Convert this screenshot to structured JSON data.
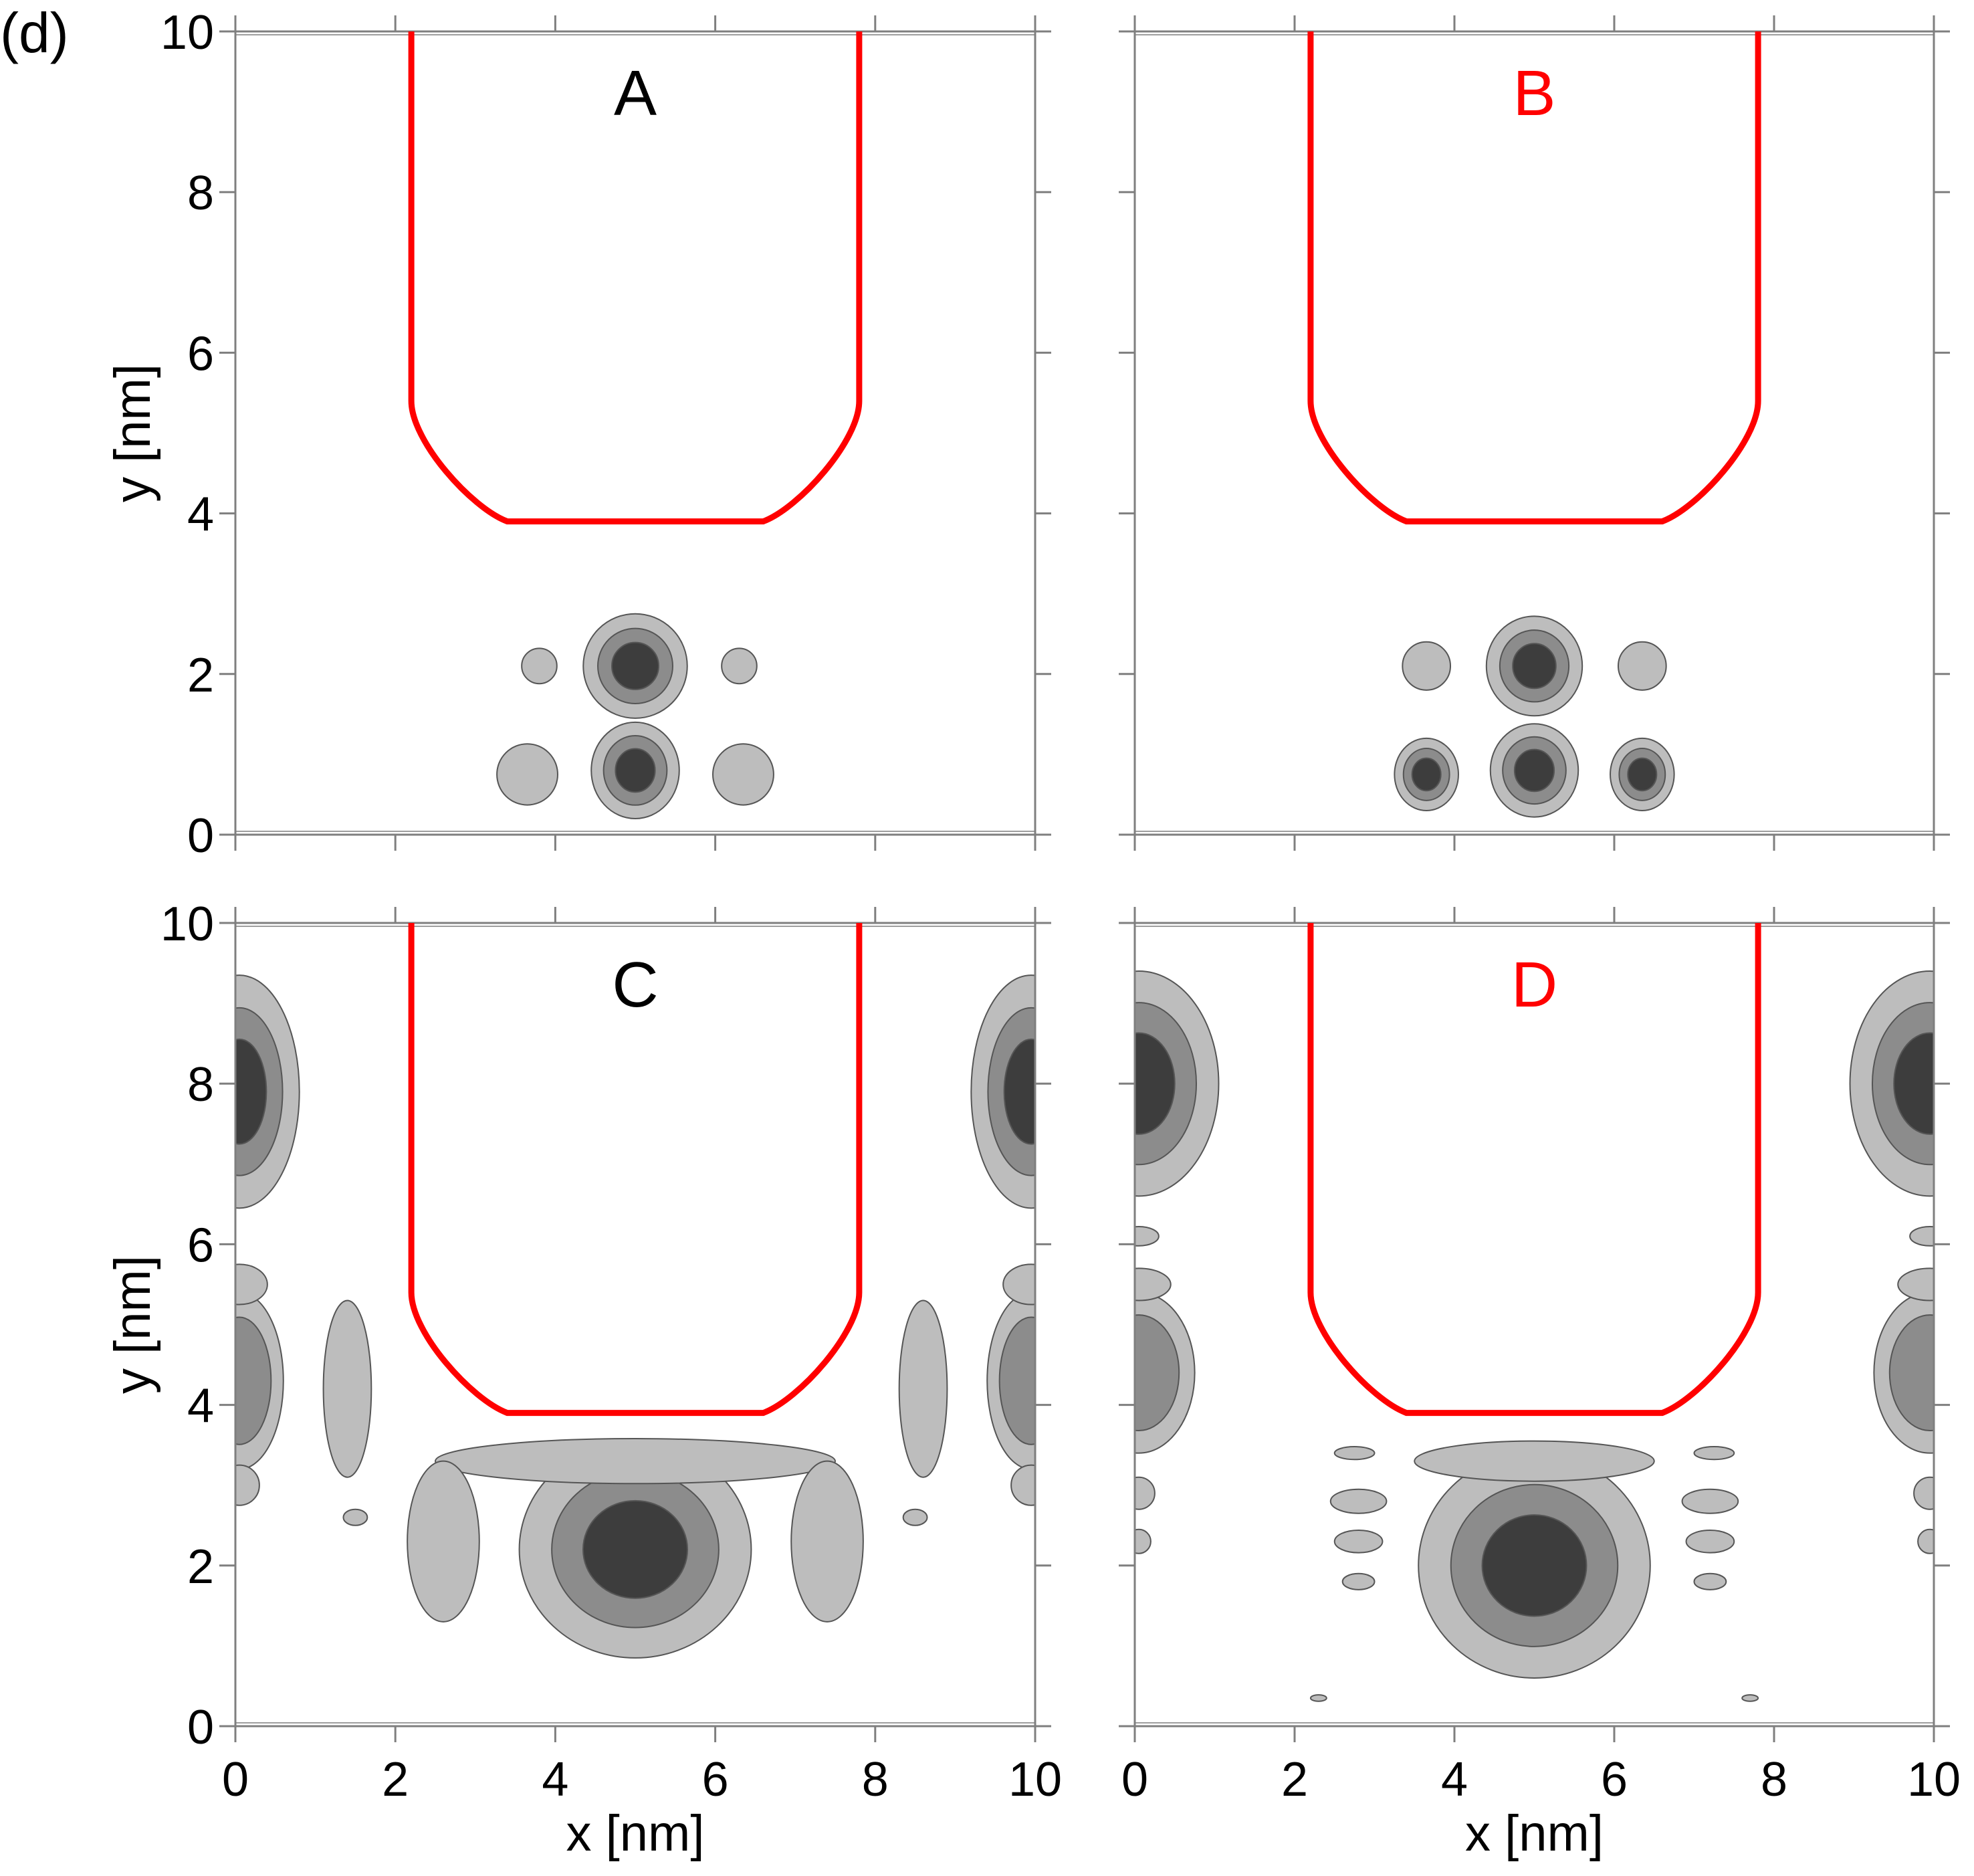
{
  "figure_label": "(d)",
  "colors": {
    "contour_light": "#bdbdbd",
    "contour_mid": "#8c8c8c",
    "contour_dark": "#3d3d3d",
    "contour_stroke": "#555555",
    "boundary": "#ff0000",
    "label_black": "#000000",
    "label_red": "#ff0000",
    "axis": "#7f7f7f"
  },
  "chart_data": [
    {
      "id": "A",
      "type": "heatmap",
      "panel_label": "A",
      "label_color": "#000000",
      "xlim": [
        0,
        10
      ],
      "ylim": [
        0,
        10
      ],
      "xticks": [
        0,
        2,
        4,
        6,
        8,
        10
      ],
      "yticks": [
        0,
        2,
        4,
        6,
        8,
        10
      ],
      "xlabel": "",
      "ylabel": "y [nm]",
      "boundary": {
        "x_left": 2.2,
        "x_right": 7.8,
        "y_bottom": 3.9,
        "y_top": 10,
        "corner_y": 5.4
      },
      "blobs": [
        {
          "x": 5.0,
          "y": 2.1,
          "rx": 0.65,
          "ry": 0.65,
          "max": 3
        },
        {
          "x": 5.0,
          "y": 0.8,
          "rx": 0.55,
          "ry": 0.6,
          "max": 3
        },
        {
          "x": 3.8,
          "y": 2.1,
          "rx": 0.22,
          "ry": 0.22,
          "max": 1
        },
        {
          "x": 6.3,
          "y": 2.1,
          "rx": 0.22,
          "ry": 0.22,
          "max": 1
        },
        {
          "x": 3.65,
          "y": 0.75,
          "rx": 0.38,
          "ry": 0.38,
          "max": 1
        },
        {
          "x": 6.35,
          "y": 0.75,
          "rx": 0.38,
          "ry": 0.38,
          "max": 1
        }
      ]
    },
    {
      "id": "B",
      "type": "heatmap",
      "panel_label": "B",
      "label_color": "#ff0000",
      "xlim": [
        0,
        10
      ],
      "ylim": [
        0,
        10
      ],
      "xticks": [
        0,
        2,
        4,
        6,
        8,
        10
      ],
      "yticks": [
        0,
        2,
        4,
        6,
        8,
        10
      ],
      "xlabel": "",
      "ylabel": "",
      "boundary": {
        "x_left": 2.2,
        "x_right": 7.8,
        "y_bottom": 3.9,
        "y_top": 10,
        "corner_y": 5.4
      },
      "blobs": [
        {
          "x": 5.0,
          "y": 2.1,
          "rx": 0.6,
          "ry": 0.62,
          "max": 3
        },
        {
          "x": 5.0,
          "y": 0.8,
          "rx": 0.55,
          "ry": 0.58,
          "max": 3
        },
        {
          "x": 3.65,
          "y": 2.1,
          "rx": 0.3,
          "ry": 0.3,
          "max": 1
        },
        {
          "x": 6.35,
          "y": 2.1,
          "rx": 0.3,
          "ry": 0.3,
          "max": 1
        },
        {
          "x": 3.65,
          "y": 0.75,
          "rx": 0.4,
          "ry": 0.45,
          "max": 3
        },
        {
          "x": 6.35,
          "y": 0.75,
          "rx": 0.4,
          "ry": 0.45,
          "max": 3
        }
      ]
    },
    {
      "id": "C",
      "type": "heatmap",
      "panel_label": "C",
      "label_color": "#000000",
      "xlim": [
        0,
        10
      ],
      "ylim": [
        0,
        10
      ],
      "xticks": [
        0,
        2,
        4,
        6,
        8,
        10
      ],
      "yticks": [
        0,
        2,
        4,
        6,
        8,
        10
      ],
      "xlabel": "x [nm]",
      "ylabel": "y [nm]",
      "boundary": {
        "x_left": 2.2,
        "x_right": 7.8,
        "y_bottom": 3.9,
        "y_top": 10,
        "corner_y": 5.4
      },
      "blobs": [
        {
          "x": 5.0,
          "y": 2.2,
          "rx": 1.45,
          "ry": 1.35,
          "max": 3
        },
        {
          "x": 5.0,
          "y": 3.3,
          "rx": 2.5,
          "ry": 0.28,
          "max": 1
        },
        {
          "x": 2.6,
          "y": 2.3,
          "rx": 0.45,
          "ry": 1.0,
          "max": 1
        },
        {
          "x": 7.4,
          "y": 2.3,
          "rx": 0.45,
          "ry": 1.0,
          "max": 1
        },
        {
          "x": 1.4,
          "y": 4.2,
          "rx": 0.3,
          "ry": 1.1,
          "max": 1
        },
        {
          "x": 8.6,
          "y": 4.2,
          "rx": 0.3,
          "ry": 1.1,
          "max": 1
        },
        {
          "x": 1.5,
          "y": 2.6,
          "rx": 0.15,
          "ry": 0.1,
          "max": 1
        },
        {
          "x": 8.5,
          "y": 2.6,
          "rx": 0.15,
          "ry": 0.1,
          "max": 1
        },
        {
          "x": 0.05,
          "y": 7.9,
          "rx": 0.75,
          "ry": 1.45,
          "max": 3
        },
        {
          "x": 9.95,
          "y": 7.9,
          "rx": 0.75,
          "ry": 1.45,
          "max": 3
        },
        {
          "x": 0.05,
          "y": 4.3,
          "rx": 0.55,
          "ry": 1.1,
          "max": 2
        },
        {
          "x": 9.95,
          "y": 4.3,
          "rx": 0.55,
          "ry": 1.1,
          "max": 2
        },
        {
          "x": 0.05,
          "y": 5.5,
          "rx": 0.35,
          "ry": 0.25,
          "max": 1
        },
        {
          "x": 9.95,
          "y": 5.5,
          "rx": 0.35,
          "ry": 0.25,
          "max": 1
        },
        {
          "x": 0.05,
          "y": 3.0,
          "rx": 0.25,
          "ry": 0.25,
          "max": 1
        },
        {
          "x": 9.95,
          "y": 3.0,
          "rx": 0.25,
          "ry": 0.25,
          "max": 1
        }
      ]
    },
    {
      "id": "D",
      "type": "heatmap",
      "panel_label": "D",
      "label_color": "#ff0000",
      "xlim": [
        0,
        10
      ],
      "ylim": [
        0,
        10
      ],
      "xticks": [
        0,
        2,
        4,
        6,
        8,
        10
      ],
      "yticks": [
        0,
        2,
        4,
        6,
        8,
        10
      ],
      "xlabel": "x [nm]",
      "ylabel": "",
      "boundary": {
        "x_left": 2.2,
        "x_right": 7.8,
        "y_bottom": 3.9,
        "y_top": 10,
        "corner_y": 5.4
      },
      "blobs": [
        {
          "x": 5.0,
          "y": 2.0,
          "rx": 1.45,
          "ry": 1.4,
          "max": 3
        },
        {
          "x": 5.0,
          "y": 3.3,
          "rx": 1.5,
          "ry": 0.25,
          "max": 1
        },
        {
          "x": 2.8,
          "y": 2.8,
          "rx": 0.35,
          "ry": 0.15,
          "max": 1
        },
        {
          "x": 7.2,
          "y": 2.8,
          "rx": 0.35,
          "ry": 0.15,
          "max": 1
        },
        {
          "x": 2.8,
          "y": 2.3,
          "rx": 0.3,
          "ry": 0.14,
          "max": 1
        },
        {
          "x": 7.2,
          "y": 2.3,
          "rx": 0.3,
          "ry": 0.14,
          "max": 1
        },
        {
          "x": 2.8,
          "y": 1.8,
          "rx": 0.2,
          "ry": 0.1,
          "max": 1
        },
        {
          "x": 7.2,
          "y": 1.8,
          "rx": 0.2,
          "ry": 0.1,
          "max": 1
        },
        {
          "x": 2.75,
          "y": 3.4,
          "rx": 0.25,
          "ry": 0.08,
          "max": 1
        },
        {
          "x": 7.25,
          "y": 3.4,
          "rx": 0.25,
          "ry": 0.08,
          "max": 1
        },
        {
          "x": 0.05,
          "y": 8.0,
          "rx": 1.0,
          "ry": 1.4,
          "max": 3
        },
        {
          "x": 9.95,
          "y": 8.0,
          "rx": 1.0,
          "ry": 1.4,
          "max": 3
        },
        {
          "x": 0.05,
          "y": 4.4,
          "rx": 0.7,
          "ry": 1.0,
          "max": 2
        },
        {
          "x": 9.95,
          "y": 4.4,
          "rx": 0.7,
          "ry": 1.0,
          "max": 2
        },
        {
          "x": 0.05,
          "y": 5.5,
          "rx": 0.4,
          "ry": 0.2,
          "max": 1
        },
        {
          "x": 9.95,
          "y": 5.5,
          "rx": 0.4,
          "ry": 0.2,
          "max": 1
        },
        {
          "x": 0.05,
          "y": 6.1,
          "rx": 0.25,
          "ry": 0.12,
          "max": 1
        },
        {
          "x": 9.95,
          "y": 6.1,
          "rx": 0.25,
          "ry": 0.12,
          "max": 1
        },
        {
          "x": 0.05,
          "y": 2.9,
          "rx": 0.2,
          "ry": 0.2,
          "max": 1
        },
        {
          "x": 9.95,
          "y": 2.9,
          "rx": 0.2,
          "ry": 0.2,
          "max": 1
        },
        {
          "x": 0.05,
          "y": 2.3,
          "rx": 0.15,
          "ry": 0.15,
          "max": 1
        },
        {
          "x": 9.95,
          "y": 2.3,
          "rx": 0.15,
          "ry": 0.15,
          "max": 1
        },
        {
          "x": 2.3,
          "y": 0.35,
          "rx": 0.1,
          "ry": 0.04,
          "max": 1
        },
        {
          "x": 7.7,
          "y": 0.35,
          "rx": 0.1,
          "ry": 0.04,
          "max": 1
        }
      ]
    }
  ]
}
